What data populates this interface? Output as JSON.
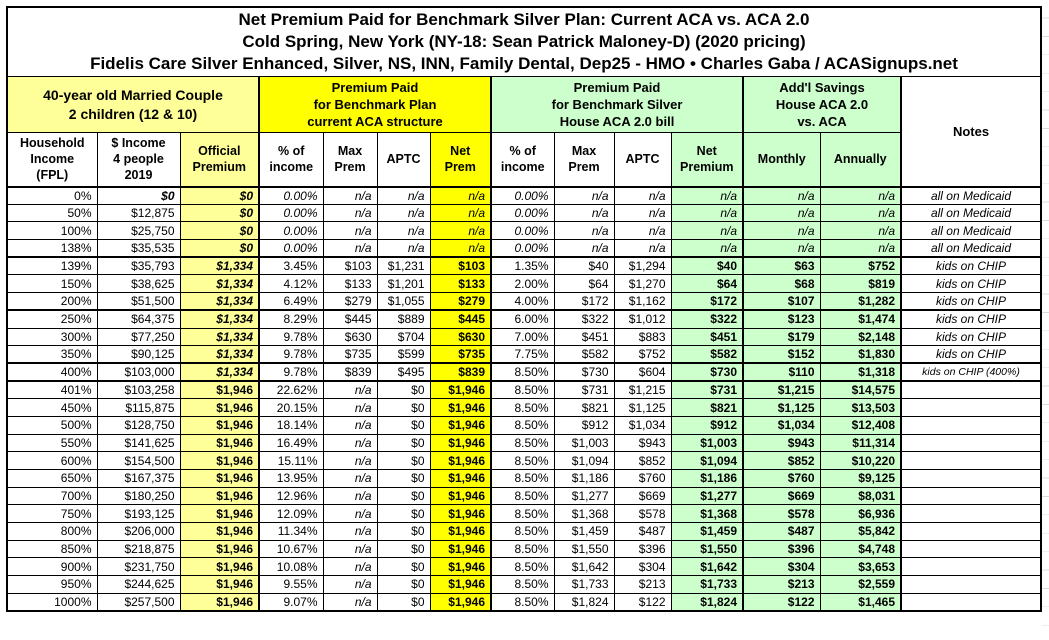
{
  "colors": {
    "light_yellow": "#FFFF99",
    "bright_yellow": "#FFFF00",
    "light_green": "#CCFFCC",
    "border": "#000000",
    "text": "#000000"
  },
  "chart_data": {
    "type": "table",
    "title_lines": [
      "Net Premium Paid for Benchmark Silver Plan: Current ACA vs. ACA 2.0",
      "Cold Spring, New York (NY-18: Sean Patrick Maloney-D) (2020 pricing)",
      "Fidelis Care Silver Enhanced, Silver, NS, INN, Family Dental, Dep25 - HMO • Charles Gaba / ACASignups.net"
    ],
    "column_groups": [
      {
        "label": "40-year old Married Couple\n2 children (12 & 10)",
        "span": 3,
        "bg": "light_yellow"
      },
      {
        "label": "Premium Paid\nfor Benchmark Plan\ncurrent ACA structure",
        "span": 4,
        "bg": "bright_yellow"
      },
      {
        "label": "Premium Paid\nfor Benchmark Silver\nHouse ACA 2.0 bill",
        "span": 4,
        "bg": "light_green"
      },
      {
        "label": "Add'l Savings\nHouse ACA 2.0\nvs. ACA",
        "span": 2,
        "bg": "light_green"
      },
      {
        "label": "Notes",
        "span": 1,
        "bg": "white",
        "rowspan": 2
      }
    ],
    "columns": [
      {
        "label": "Household\nIncome\n(FPL)",
        "key": "fpl",
        "bg": "white"
      },
      {
        "label": "$ Income\n4 people\n2019",
        "key": "income",
        "bg": "white"
      },
      {
        "label": "Official\nPremium",
        "key": "official",
        "bg": "light_yellow"
      },
      {
        "label": "% of\nincome",
        "key": "aca_pct",
        "bg": "white"
      },
      {
        "label": "Max\nPrem",
        "key": "aca_max",
        "bg": "white"
      },
      {
        "label": "APTC",
        "key": "aca_aptc",
        "bg": "white"
      },
      {
        "label": "Net\nPrem",
        "key": "aca_net",
        "bg": "bright_yellow"
      },
      {
        "label": "% of\nincome",
        "key": "aca2_pct",
        "bg": "white"
      },
      {
        "label": "Max\nPrem",
        "key": "aca2_max",
        "bg": "white"
      },
      {
        "label": "APTC",
        "key": "aca2_aptc",
        "bg": "white"
      },
      {
        "label": "Net\nPremium",
        "key": "aca2_net",
        "bg": "light_green"
      },
      {
        "label": "Monthly",
        "key": "monthly",
        "bg": "light_green"
      },
      {
        "label": "Annually",
        "key": "annually",
        "bg": "light_green"
      }
    ],
    "rows": [
      [
        "0%",
        "$0",
        "$0",
        "0.00%",
        "n/a",
        "n/a",
        "n/a",
        "0.00%",
        "n/a",
        "n/a",
        "n/a",
        "n/a",
        "n/a",
        "all on Medicaid"
      ],
      [
        "50%",
        "$12,875",
        "$0",
        "0.00%",
        "n/a",
        "n/a",
        "n/a",
        "0.00%",
        "n/a",
        "n/a",
        "n/a",
        "n/a",
        "n/a",
        "all on Medicaid"
      ],
      [
        "100%",
        "$25,750",
        "$0",
        "0.00%",
        "n/a",
        "n/a",
        "n/a",
        "0.00%",
        "n/a",
        "n/a",
        "n/a",
        "n/a",
        "n/a",
        "all on Medicaid"
      ],
      [
        "138%",
        "$35,535",
        "$0",
        "0.00%",
        "n/a",
        "n/a",
        "n/a",
        "0.00%",
        "n/a",
        "n/a",
        "n/a",
        "n/a",
        "n/a",
        "all on Medicaid"
      ],
      [
        "139%",
        "$35,793",
        "$1,334",
        "3.45%",
        "$103",
        "$1,231",
        "$103",
        "1.35%",
        "$40",
        "$1,294",
        "$40",
        "$63",
        "$752",
        "kids on CHIP"
      ],
      [
        "150%",
        "$38,625",
        "$1,334",
        "4.12%",
        "$133",
        "$1,201",
        "$133",
        "2.00%",
        "$64",
        "$1,270",
        "$64",
        "$68",
        "$819",
        "kids on CHIP"
      ],
      [
        "200%",
        "$51,500",
        "$1,334",
        "6.49%",
        "$279",
        "$1,055",
        "$279",
        "4.00%",
        "$172",
        "$1,162",
        "$172",
        "$107",
        "$1,282",
        "kids on CHIP"
      ],
      [
        "250%",
        "$64,375",
        "$1,334",
        "8.29%",
        "$445",
        "$889",
        "$445",
        "6.00%",
        "$322",
        "$1,012",
        "$322",
        "$123",
        "$1,474",
        "kids on CHIP"
      ],
      [
        "300%",
        "$77,250",
        "$1,334",
        "9.78%",
        "$630",
        "$704",
        "$630",
        "7.00%",
        "$451",
        "$883",
        "$451",
        "$179",
        "$2,148",
        "kids on CHIP"
      ],
      [
        "350%",
        "$90,125",
        "$1,334",
        "9.78%",
        "$735",
        "$599",
        "$735",
        "7.75%",
        "$582",
        "$752",
        "$582",
        "$152",
        "$1,830",
        "kids on CHIP"
      ],
      [
        "400%",
        "$103,000",
        "$1,334",
        "9.78%",
        "$839",
        "$495",
        "$839",
        "8.50%",
        "$730",
        "$604",
        "$730",
        "$110",
        "$1,318",
        "kids on CHIP (400%)"
      ],
      [
        "401%",
        "$103,258",
        "$1,946",
        "22.62%",
        "n/a",
        "$0",
        "$1,946",
        "8.50%",
        "$731",
        "$1,215",
        "$731",
        "$1,215",
        "$14,575",
        ""
      ],
      [
        "450%",
        "$115,875",
        "$1,946",
        "20.15%",
        "n/a",
        "$0",
        "$1,946",
        "8.50%",
        "$821",
        "$1,125",
        "$821",
        "$1,125",
        "$13,503",
        ""
      ],
      [
        "500%",
        "$128,750",
        "$1,946",
        "18.14%",
        "n/a",
        "$0",
        "$1,946",
        "8.50%",
        "$912",
        "$1,034",
        "$912",
        "$1,034",
        "$12,408",
        ""
      ],
      [
        "550%",
        "$141,625",
        "$1,946",
        "16.49%",
        "n/a",
        "$0",
        "$1,946",
        "8.50%",
        "$1,003",
        "$943",
        "$1,003",
        "$943",
        "$11,314",
        ""
      ],
      [
        "600%",
        "$154,500",
        "$1,946",
        "15.11%",
        "n/a",
        "$0",
        "$1,946",
        "8.50%",
        "$1,094",
        "$852",
        "$1,094",
        "$852",
        "$10,220",
        ""
      ],
      [
        "650%",
        "$167,375",
        "$1,946",
        "13.95%",
        "n/a",
        "$0",
        "$1,946",
        "8.50%",
        "$1,186",
        "$760",
        "$1,186",
        "$760",
        "$9,125",
        ""
      ],
      [
        "700%",
        "$180,250",
        "$1,946",
        "12.96%",
        "n/a",
        "$0",
        "$1,946",
        "8.50%",
        "$1,277",
        "$669",
        "$1,277",
        "$669",
        "$8,031",
        ""
      ],
      [
        "750%",
        "$193,125",
        "$1,946",
        "12.09%",
        "n/a",
        "$0",
        "$1,946",
        "8.50%",
        "$1,368",
        "$578",
        "$1,368",
        "$578",
        "$6,936",
        ""
      ],
      [
        "800%",
        "$206,000",
        "$1,946",
        "11.34%",
        "n/a",
        "$0",
        "$1,946",
        "8.50%",
        "$1,459",
        "$487",
        "$1,459",
        "$487",
        "$5,842",
        ""
      ],
      [
        "850%",
        "$218,875",
        "$1,946",
        "10.67%",
        "n/a",
        "$0",
        "$1,946",
        "8.50%",
        "$1,550",
        "$396",
        "$1,550",
        "$396",
        "$4,748",
        ""
      ],
      [
        "900%",
        "$231,750",
        "$1,946",
        "10.08%",
        "n/a",
        "$0",
        "$1,946",
        "8.50%",
        "$1,642",
        "$304",
        "$1,642",
        "$304",
        "$3,653",
        ""
      ],
      [
        "950%",
        "$244,625",
        "$1,946",
        "9.55%",
        "n/a",
        "$0",
        "$1,946",
        "8.50%",
        "$1,733",
        "$213",
        "$1,733",
        "$213",
        "$2,559",
        ""
      ],
      [
        "1000%",
        "$257,500",
        "$1,946",
        "9.07%",
        "n/a",
        "$0",
        "$1,946",
        "8.50%",
        "$1,824",
        "$122",
        "$1,824",
        "$122",
        "$1,465",
        ""
      ]
    ]
  }
}
